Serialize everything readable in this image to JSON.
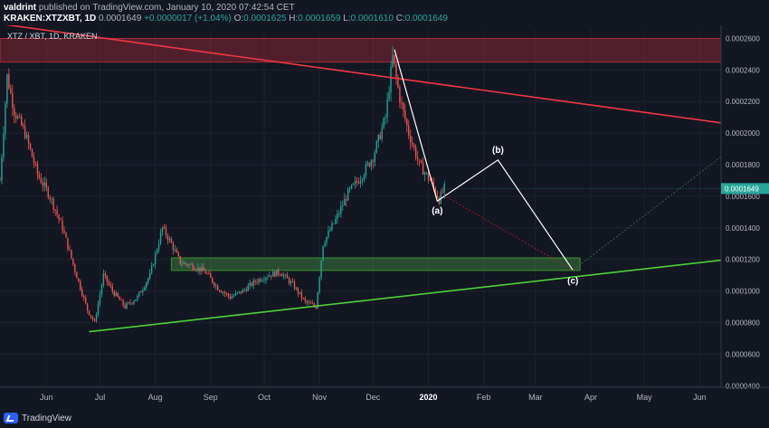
{
  "header": {
    "author": "valdrint",
    "published_text": "published on TradingView.com, January 10, 2020 07:42:54 CET",
    "symbol": "KRAKEN:XTZXBT, 1D",
    "last": "0.0001649",
    "change": "+0.0000017 (+1.04%)",
    "o_label": "O:",
    "o_value": "0.0001625",
    "h_label": "H:",
    "h_value": "0.0001659",
    "l_label": "L:",
    "l_value": "0.0001610",
    "c_label": "C:",
    "c_value": "0.0001649"
  },
  "footer": {
    "brand": "TradingView"
  },
  "colors": {
    "background": "#131722",
    "up": "#26a69a",
    "down": "#ef5350",
    "resistance_line": "#f23645",
    "support_line": "#4cd137",
    "price_badge": "#26a69a"
  },
  "chart_data": {
    "type": "candlestick",
    "legend": "XTZ / XBT, 1D, KRAKEN",
    "x_ticks": [
      "Jun",
      "Jul",
      "Aug",
      "Sep",
      "Oct",
      "Nov",
      "Dec",
      "2020",
      "Feb",
      "Mar",
      "Apr",
      "May",
      "Jun"
    ],
    "x_tick_dates": [
      "2019-06-01",
      "2019-07-01",
      "2019-08-01",
      "2019-09-01",
      "2019-10-01",
      "2019-11-01",
      "2019-12-01",
      "2020-01-01",
      "2020-02-01",
      "2020-03-01",
      "2020-04-01",
      "2020-05-01",
      "2020-06-01"
    ],
    "x_range": [
      "2019-05-06",
      "2020-06-13"
    ],
    "y_ticks": [
      "0.0000400",
      "0.0000600",
      "0.0000800",
      "0.0001000",
      "0.0001200",
      "0.0001400",
      "0.0001600",
      "0.0001800",
      "0.0002000",
      "0.0002200",
      "0.0002400",
      "0.0002600"
    ],
    "y_range": [
      3.9e-05,
      0.000266
    ],
    "last_price": "0.0001649",
    "last_price_value": 0.0001649,
    "price_path": [
      [
        "2019-05-06",
        0.00017
      ],
      [
        "2019-05-10",
        0.000236
      ],
      [
        "2019-05-14",
        0.000214
      ],
      [
        "2019-05-20",
        0.0002
      ],
      [
        "2019-05-27",
        0.000174
      ],
      [
        "2019-06-03",
        0.00016
      ],
      [
        "2019-06-10",
        0.00014
      ],
      [
        "2019-06-17",
        0.000113
      ],
      [
        "2019-06-24",
        8.8e-05
      ],
      [
        "2019-06-28",
        8e-05
      ],
      [
        "2019-07-03",
        0.00011
      ],
      [
        "2019-07-08",
        0.0001
      ],
      [
        "2019-07-15",
        9e-05
      ],
      [
        "2019-07-22",
        9.6e-05
      ],
      [
        "2019-07-29",
        0.00011
      ],
      [
        "2019-08-05",
        0.00014
      ],
      [
        "2019-08-10",
        0.00013
      ],
      [
        "2019-08-15",
        0.000118
      ],
      [
        "2019-08-22",
        0.000116
      ],
      [
        "2019-08-29",
        0.000112
      ],
      [
        "2019-09-05",
        0.000102
      ],
      [
        "2019-09-12",
        9.6e-05
      ],
      [
        "2019-09-19",
        0.0001
      ],
      [
        "2019-09-26",
        0.000106
      ],
      [
        "2019-10-03",
        0.00011
      ],
      [
        "2019-10-10",
        0.000112
      ],
      [
        "2019-10-17",
        0.000104
      ],
      [
        "2019-10-24",
        9.3e-05
      ],
      [
        "2019-10-30",
        9e-05
      ],
      [
        "2019-11-03",
        0.00013
      ],
      [
        "2019-11-10",
        0.000145
      ],
      [
        "2019-11-17",
        0.000162
      ],
      [
        "2019-11-24",
        0.000172
      ],
      [
        "2019-12-01",
        0.000185
      ],
      [
        "2019-12-08",
        0.00021
      ],
      [
        "2019-12-12",
        0.000248
      ],
      [
        "2019-12-16",
        0.000222
      ],
      [
        "2019-12-21",
        0.0002
      ],
      [
        "2019-12-27",
        0.00018
      ],
      [
        "2020-01-02",
        0.00017
      ],
      [
        "2020-01-07",
        0.000158
      ],
      [
        "2020-01-10",
        0.000165
      ]
    ],
    "resistance_zone": {
      "from": 0.000245,
      "to": 0.00026
    },
    "support_zone": {
      "from": 0.000113,
      "to": 0.000121,
      "x_start": "2019-08-10",
      "x_end": "2020-03-26"
    },
    "trendlines": [
      {
        "role": "resistance",
        "from": [
          "2019-05-01",
          0.00027
        ],
        "to": [
          "2020-06-13",
          0.0002065
        ]
      },
      {
        "role": "support",
        "from": [
          "2019-06-25",
          7.42e-05
        ],
        "to": [
          "2020-06-13",
          0.0001195
        ]
      }
    ],
    "projection": [
      [
        "2019-12-13",
        0.000253
      ],
      [
        "2020-01-06",
        0.000157
      ],
      [
        "2020-02-09",
        0.000183
      ],
      [
        "2020-03-22",
        0.0001132
      ]
    ],
    "projection_extension": {
      "from": [
        "2020-03-22",
        0.0001132
      ],
      "to": [
        "2020-06-13",
        0.000185
      ]
    },
    "projection_alt": {
      "from": [
        "2020-01-06",
        0.000163
      ],
      "to": [
        "2020-03-22",
        0.0001132
      ]
    },
    "annotations": [
      {
        "label": "(a)",
        "point": [
          "2020-01-06",
          0.000157
        ]
      },
      {
        "label": "(b)",
        "point": [
          "2020-02-09",
          0.000183
        ]
      },
      {
        "label": "(c)",
        "point": [
          "2020-03-22",
          0.0001132
        ]
      }
    ]
  }
}
